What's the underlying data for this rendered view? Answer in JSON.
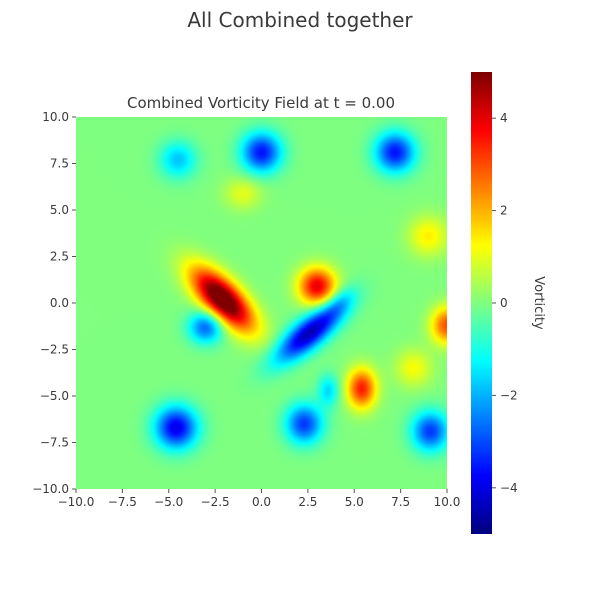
{
  "figure_title": "All Combined together",
  "chart_data": {
    "type": "heatmap",
    "title": "Combined Vorticity Field at t = 0.00",
    "xlabel": "",
    "ylabel": "",
    "xlim": [
      -10,
      10
    ],
    "ylim": [
      -10,
      10
    ],
    "x_ticks": [
      -10,
      -7.5,
      -5,
      -2.5,
      0,
      2.5,
      5,
      7.5,
      10
    ],
    "x_tick_labels": [
      "−10.0",
      "−7.5",
      "−5.0",
      "−2.5",
      "0.0",
      "2.5",
      "5.0",
      "7.5",
      "10.0"
    ],
    "y_ticks": [
      10,
      7.5,
      5,
      2.5,
      0,
      -2.5,
      -5,
      -7.5,
      -10
    ],
    "y_tick_labels": [
      "10.0",
      "7.5",
      "5.0",
      "2.5",
      "0.0",
      "−2.5",
      "−5.0",
      "−7.5",
      "−10.0"
    ],
    "colormap": "jet",
    "clim": [
      -5,
      5
    ],
    "grid": false,
    "colorbar": {
      "label": "Vorticity",
      "ticks": [
        4,
        2,
        0,
        -2,
        -4
      ],
      "tick_labels": [
        "4",
        "2",
        "0",
        "−2",
        "−4"
      ]
    },
    "vortices": [
      {
        "x": -4.5,
        "y": 7.7,
        "strength": -1.8,
        "sx": 0.7,
        "sy": 0.7,
        "angle": 0
      },
      {
        "x": 0.0,
        "y": 8.1,
        "strength": -3.6,
        "sx": 0.75,
        "sy": 0.75,
        "angle": 0
      },
      {
        "x": 7.2,
        "y": 8.1,
        "strength": -3.6,
        "sx": 0.75,
        "sy": 0.75,
        "angle": 0
      },
      {
        "x": -1.0,
        "y": 5.9,
        "strength": 1.0,
        "sx": 0.7,
        "sy": 0.6,
        "angle": 0
      },
      {
        "x": 9.0,
        "y": 3.6,
        "strength": 1.4,
        "sx": 0.75,
        "sy": 0.75,
        "angle": 0
      },
      {
        "x": -2.1,
        "y": 0.2,
        "strength": 6.0,
        "sx": 1.5,
        "sy": 0.65,
        "angle": -45
      },
      {
        "x": 3.0,
        "y": 0.9,
        "strength": 4.0,
        "sx": 0.7,
        "sy": 0.7,
        "angle": 0
      },
      {
        "x": -3.0,
        "y": -1.3,
        "strength": -2.8,
        "sx": 0.65,
        "sy": 0.6,
        "angle": 0
      },
      {
        "x": 2.6,
        "y": -1.6,
        "strength": -4.5,
        "sx": 1.6,
        "sy": 0.55,
        "angle": 40
      },
      {
        "x": 4.2,
        "y": 0.0,
        "strength": -1.0,
        "sx": 0.7,
        "sy": 0.4,
        "angle": 45
      },
      {
        "x": 10.0,
        "y": -1.2,
        "strength": 3.0,
        "sx": 0.6,
        "sy": 0.7,
        "angle": 0
      },
      {
        "x": 8.2,
        "y": -3.5,
        "strength": 1.2,
        "sx": 0.7,
        "sy": 0.7,
        "angle": 0
      },
      {
        "x": 3.6,
        "y": -4.7,
        "strength": -1.6,
        "sx": 0.4,
        "sy": 0.6,
        "angle": 0
      },
      {
        "x": 5.4,
        "y": -4.6,
        "strength": 3.5,
        "sx": 0.55,
        "sy": 0.75,
        "angle": 0
      },
      {
        "x": -4.6,
        "y": -6.7,
        "strength": -4.0,
        "sx": 0.8,
        "sy": 0.8,
        "angle": 0
      },
      {
        "x": 2.3,
        "y": -6.5,
        "strength": -3.2,
        "sx": 0.7,
        "sy": 0.75,
        "angle": 0
      },
      {
        "x": 9.1,
        "y": -6.9,
        "strength": -3.2,
        "sx": 0.7,
        "sy": 0.75,
        "angle": 0
      }
    ]
  }
}
